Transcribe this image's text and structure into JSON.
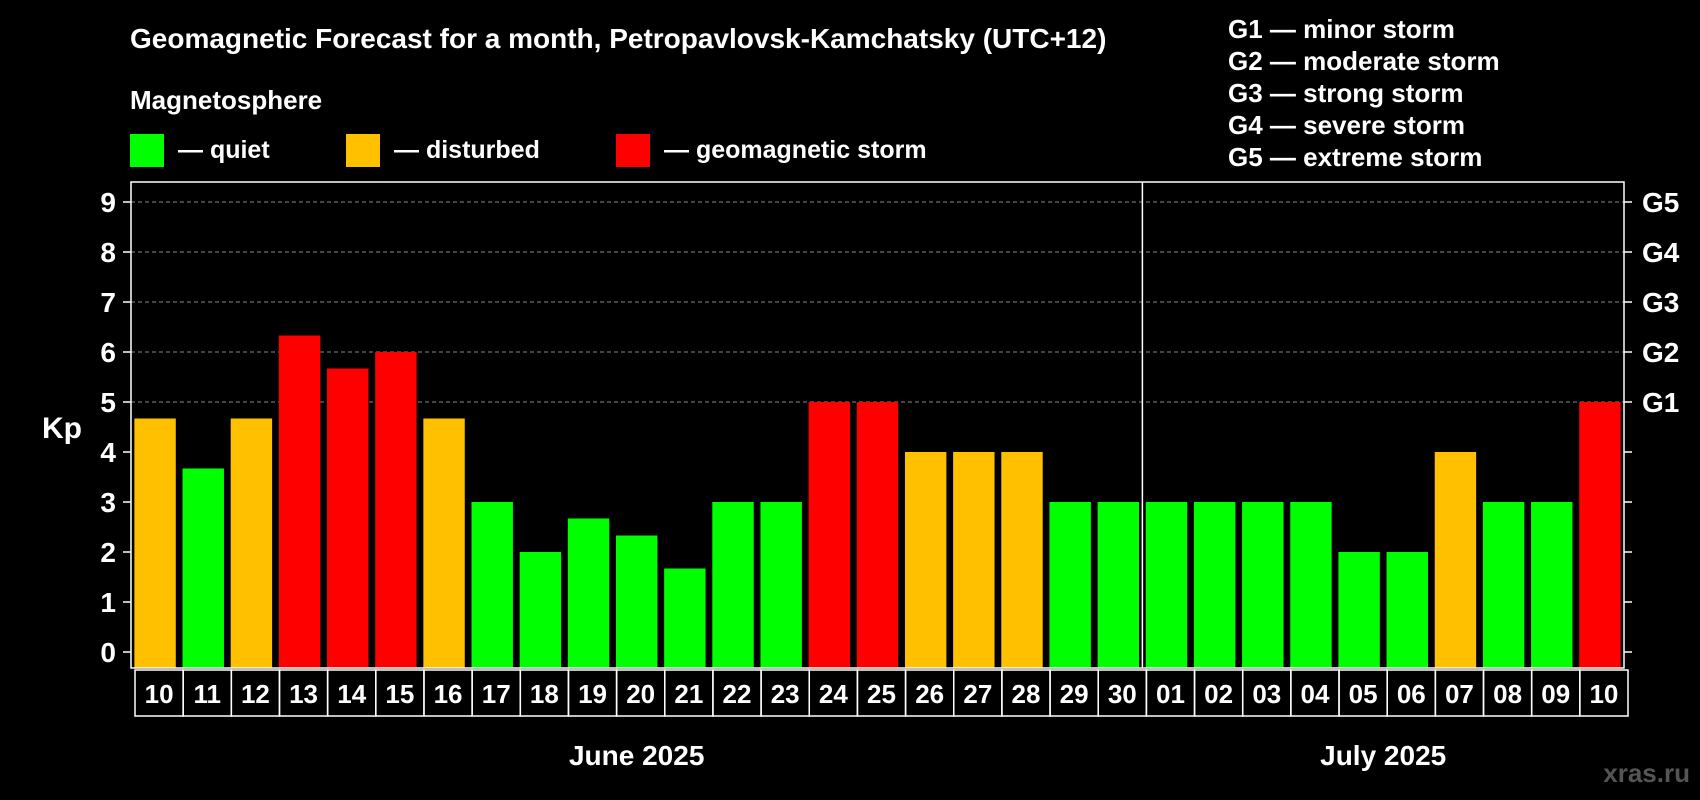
{
  "chart_data": {
    "type": "bar",
    "title": "Geomagnetic Forecast for a month, Petropavlovsk-Kamchatsky (UTC+12)",
    "ylabel": "Kp",
    "ylim": [
      0,
      9
    ],
    "yticks": [
      "0",
      "1",
      "2",
      "3",
      "4",
      "5",
      "6",
      "7",
      "8",
      "9"
    ],
    "right_axis_labels": [
      {
        "kp": 5,
        "label": "G1"
      },
      {
        "kp": 6,
        "label": "G2"
      },
      {
        "kp": 7,
        "label": "G3"
      },
      {
        "kp": 8,
        "label": "G4"
      },
      {
        "kp": 9,
        "label": "G5"
      }
    ],
    "grid": true,
    "categories": [
      "10",
      "11",
      "12",
      "13",
      "14",
      "15",
      "16",
      "17",
      "18",
      "19",
      "20",
      "21",
      "22",
      "23",
      "24",
      "25",
      "26",
      "27",
      "28",
      "29",
      "30",
      "01",
      "02",
      "03",
      "04",
      "05",
      "06",
      "07",
      "08",
      "09",
      "10"
    ],
    "values": [
      4.67,
      3.67,
      4.67,
      6.33,
      5.67,
      6.0,
      4.67,
      3.0,
      2.0,
      2.67,
      2.33,
      1.67,
      3.0,
      3.0,
      5.0,
      5.0,
      4.0,
      4.0,
      4.0,
      3.0,
      3.0,
      3.0,
      3.0,
      3.0,
      3.0,
      2.0,
      2.0,
      4.0,
      3.0,
      3.0,
      5.0
    ],
    "status": [
      "disturbed",
      "quiet",
      "disturbed",
      "storm",
      "storm",
      "storm",
      "disturbed",
      "quiet",
      "quiet",
      "quiet",
      "quiet",
      "quiet",
      "quiet",
      "quiet",
      "storm",
      "storm",
      "disturbed",
      "disturbed",
      "disturbed",
      "quiet",
      "quiet",
      "quiet",
      "quiet",
      "quiet",
      "quiet",
      "quiet",
      "quiet",
      "disturbed",
      "quiet",
      "quiet",
      "storm"
    ],
    "months": [
      {
        "label": "June 2025",
        "first_index": 0,
        "last_index": 20
      },
      {
        "label": "July 2025",
        "first_index": 21,
        "last_index": 30
      }
    ],
    "legend": {
      "title": "Magnetosphere",
      "items": [
        {
          "key": "quiet",
          "label": "— quiet",
          "color": "#00ff00"
        },
        {
          "key": "disturbed",
          "label": "— disturbed",
          "color": "#ffc000"
        },
        {
          "key": "storm",
          "label": "— geomagnetic storm",
          "color": "#ff0000"
        }
      ]
    },
    "storm_scale": [
      "G1 — minor storm",
      "G2 — moderate storm",
      "G3 — strong storm",
      "G4 — severe storm",
      "G5 — extreme storm"
    ],
    "watermark": "xras.ru"
  }
}
